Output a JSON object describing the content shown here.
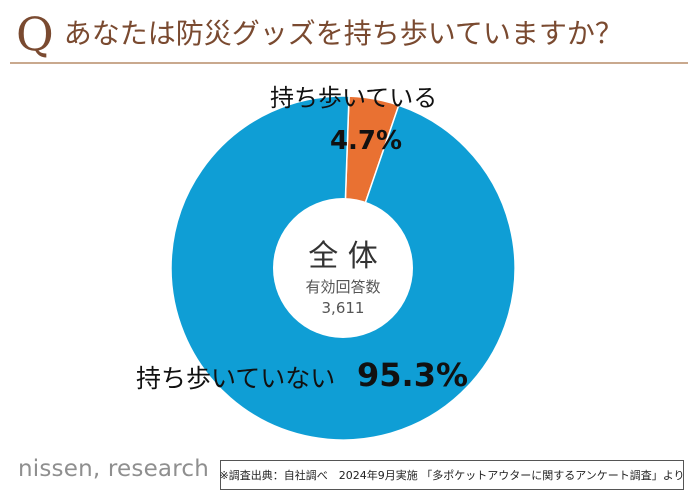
{
  "header": {
    "q_mark": "Q",
    "question": "あなたは防災グッズを持ち歩いていますか？"
  },
  "chart_data": {
    "type": "pie",
    "slices": [
      {
        "label": "持ち歩いている",
        "value": 4.7,
        "display": "4.7%",
        "color": "#e97132"
      },
      {
        "label": "持ち歩いていない",
        "value": 95.3,
        "display": "95.3%",
        "color": "#0f9ed5"
      }
    ],
    "center": {
      "title": "全 体",
      "subtitle": "有効回答数",
      "count": "3,611"
    }
  },
  "footer": {
    "brand": "nissen, research",
    "source": "※調査出典：自社調べ　2024年9月実施 「多ポケットアウターに関するアンケート調査」より"
  }
}
